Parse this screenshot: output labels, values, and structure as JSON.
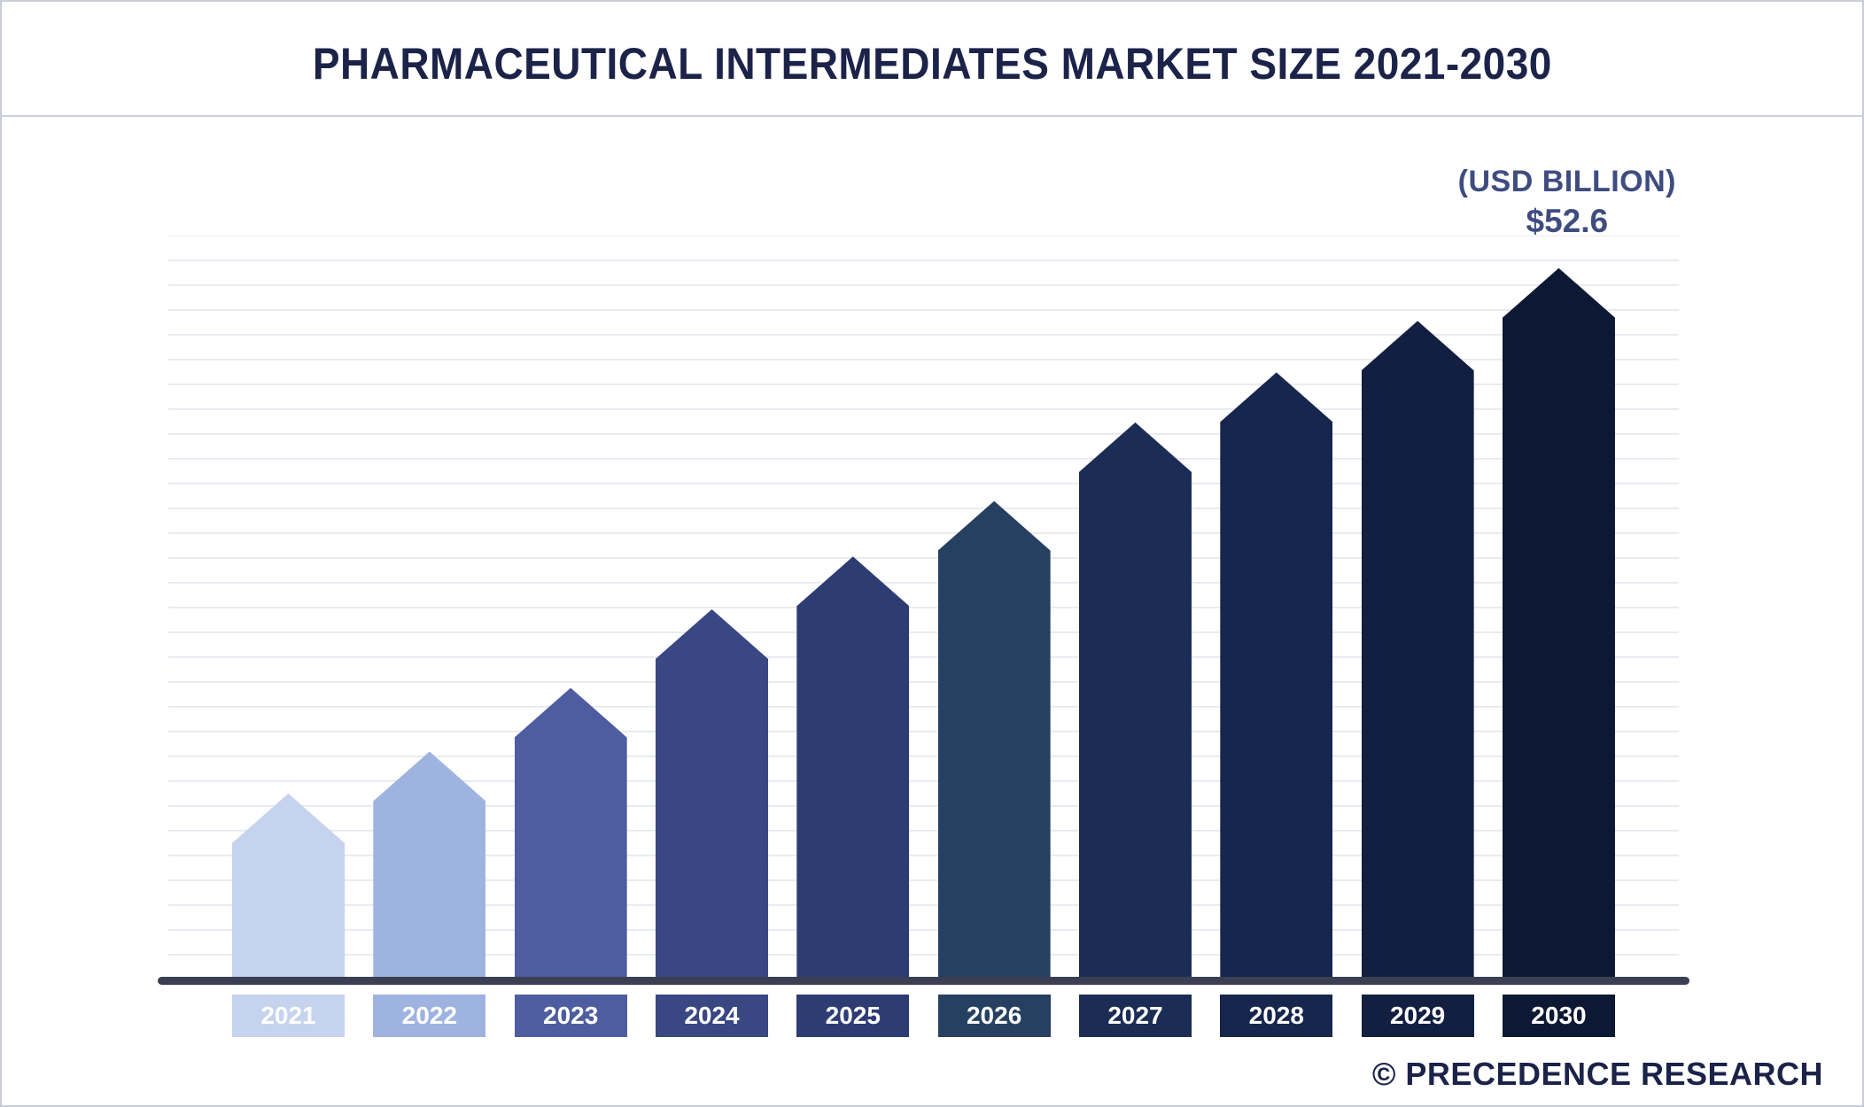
{
  "header": {
    "title": "PHARMACEUTICAL INTERMEDIATES MARKET SIZE 2021-2030"
  },
  "chart_data": {
    "type": "bar",
    "title": "Pharmaceutical Intermediates Market Size 2021-2030",
    "unit_label": "(USD BILLION)",
    "final_value_label": "$52.6",
    "categories": [
      "2021",
      "2022",
      "2023",
      "2024",
      "2025",
      "2026",
      "2027",
      "2028",
      "2029",
      "2030"
    ],
    "values": [
      13.8,
      16.9,
      21.6,
      27.4,
      31.3,
      35.4,
      41.2,
      44.9,
      48.7,
      52.6
    ],
    "ylim": [
      0,
      55
    ],
    "grid": "horizontal",
    "legend": "none",
    "bar_colors": [
      "#c5d3ee",
      "#9fb3e1",
      "#4e5d9f",
      "#394782",
      "#2e3c74",
      "#264062",
      "#1b2c55",
      "#16264c",
      "#121f41",
      "#0d1834"
    ]
  },
  "footer": {
    "brand": "© PRECEDENCE RESEARCH"
  },
  "colors": {
    "accent_navy": "#151c3d",
    "annotation_blue": "#3e4c80",
    "axis_line": "#3a3f52"
  }
}
